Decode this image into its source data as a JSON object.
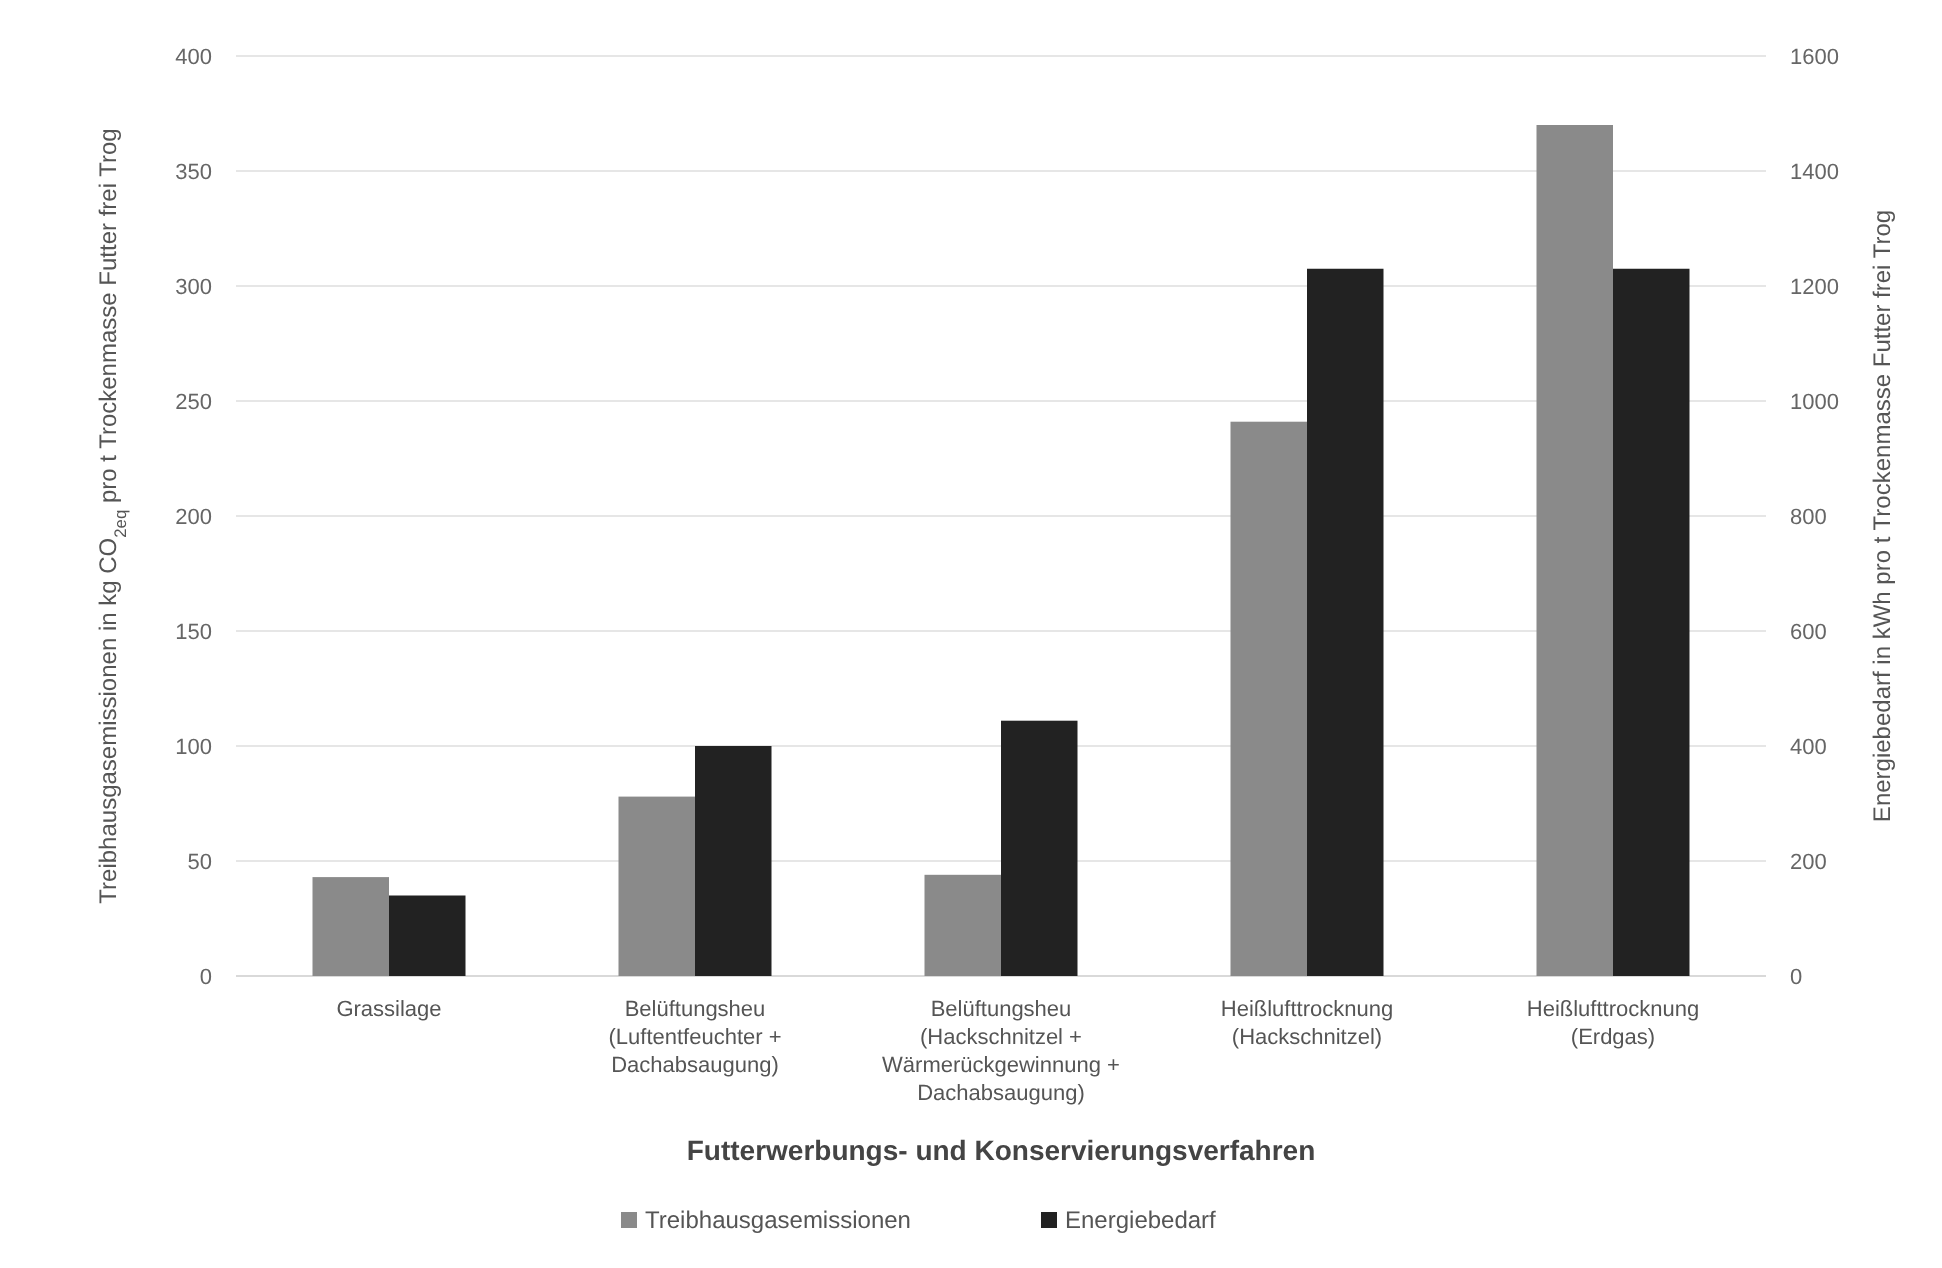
{
  "chart_data": {
    "type": "bar",
    "xlabel": "Futterwerbungs- und Konservierungsverfahren",
    "ylabel": "Treibhausgasemissionen in kg CO$_{2eq}$ pro t Trockenmasse Futter frei Trog",
    "y2label": "Energiebedarf in kWh pro t Trockenmasse Futter frei Trog",
    "categories": [
      "Grassilage",
      "Belüftungsheu (Luftentfeuchter + Dachabsaugung)",
      "Belüftungsheu (Hackschnitzel + Wärmerückgewinnung + Dachabsaugung)",
      "Heißlufttrocknung (Hackschnitzel)",
      "Heißlufttrocknung (Erdgas)"
    ],
    "series": [
      {
        "name": "Treibhausgasemissionen",
        "color": "#8a8a8a",
        "values": [
          43,
          78,
          44,
          241,
          370
        ]
      },
      {
        "name": "Energiebedarf",
        "color": "#222222",
        "values": [
          140,
          400,
          444,
          1230,
          1230
        ],
        "axis": "y2"
      }
    ],
    "ylim": [
      0,
      400
    ],
    "yticks": [
      0,
      50,
      100,
      150,
      200,
      250,
      300,
      350,
      400
    ],
    "y2lim": [
      0,
      1600
    ],
    "y2ticks": [
      0,
      200,
      400,
      600,
      800,
      1000,
      1200,
      1400,
      1600
    ],
    "grid": "y",
    "legend": "bottom"
  }
}
